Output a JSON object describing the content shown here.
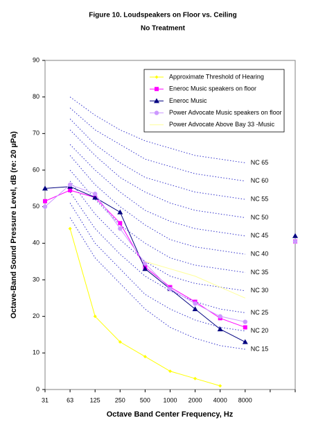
{
  "chart_data": {
    "type": "line",
    "title": "Figure 10. Loudspeakers on Floor vs. Ceiling",
    "subtitle": "No Treatment",
    "x_label": "Octave Band Center Frequency, Hz",
    "y_label": "Octave-Band Sound Pressure Level, dB (re: 20 µPa)",
    "categories": [
      "31",
      "63",
      "125",
      "250",
      "500",
      "1000",
      "2000",
      "4000",
      "8000",
      null,
      null
    ],
    "ylim": [
      0,
      90
    ],
    "yticks": [
      0,
      10,
      20,
      30,
      40,
      50,
      60,
      70,
      80,
      90
    ],
    "series": [
      {
        "name": "Approximate Threshold of Hearing",
        "color": "#ffff00",
        "marker": "diamond",
        "values": [
          null,
          44,
          20,
          13,
          9,
          5,
          3,
          1,
          null,
          null,
          null
        ]
      },
      {
        "name": "Eneroc Music speakers on floor",
        "color": "#ff00ff",
        "marker": "square",
        "values": [
          51.5,
          54.5,
          52.5,
          45.5,
          33.5,
          28,
          24,
          19.5,
          17,
          null,
          40.5
        ]
      },
      {
        "name": "Eneroc Music",
        "color": "#000080",
        "marker": "triangle",
        "values": [
          55,
          55.5,
          52.5,
          48.5,
          33,
          27.5,
          22,
          16.5,
          13,
          null,
          42
        ]
      },
      {
        "name": "Power Advocate Music speakers on floor",
        "color": "#cc99ff",
        "marker": "circle",
        "values": [
          50,
          56,
          53.5,
          44,
          34.5,
          27.5,
          23.5,
          20,
          18.5,
          null,
          40.5
        ]
      },
      {
        "name": "Power Advocate Above Bay 33 -Music",
        "color": "#ffff99",
        "marker": "none",
        "values": [
          null,
          null,
          null,
          null,
          35,
          33,
          31,
          28,
          25,
          null,
          null
        ]
      }
    ],
    "curves": [
      {
        "name": "NC 65",
        "values": [
          null,
          80,
          75,
          71,
          68,
          66,
          64,
          63,
          62,
          null,
          null
        ]
      },
      {
        "name": "NC 60",
        "values": [
          null,
          77,
          71,
          67,
          63,
          61,
          59,
          58,
          57,
          null,
          null
        ]
      },
      {
        "name": "NC 55",
        "values": [
          null,
          74,
          67,
          62,
          58,
          56,
          54,
          53,
          52,
          null,
          null
        ]
      },
      {
        "name": "NC 50",
        "values": [
          null,
          71,
          64,
          58,
          54,
          51,
          49,
          48,
          47,
          null,
          null
        ]
      },
      {
        "name": "NC 45",
        "values": [
          null,
          67,
          60,
          54,
          49,
          46,
          44,
          43,
          42,
          null,
          null
        ]
      },
      {
        "name": "NC 40",
        "values": [
          null,
          64,
          56,
          50,
          45,
          41,
          39,
          38,
          37,
          null,
          null
        ]
      },
      {
        "name": "NC 35",
        "values": [
          null,
          60,
          52,
          45,
          40,
          36,
          34,
          33,
          32,
          null,
          null
        ]
      },
      {
        "name": "NC 30",
        "values": [
          null,
          57,
          48,
          41,
          35,
          31,
          29,
          28,
          27,
          null,
          null
        ]
      },
      {
        "name": "NC 25",
        "values": [
          null,
          54,
          44,
          37,
          31,
          27,
          24,
          22,
          21,
          null,
          null
        ]
      },
      {
        "name": "NC 20",
        "values": [
          null,
          51,
          40,
          33,
          26,
          22,
          19,
          17,
          16,
          null,
          null
        ]
      },
      {
        "name": "NC 15",
        "values": [
          null,
          47,
          36,
          29,
          22,
          17,
          14,
          12,
          11,
          null,
          null
        ]
      }
    ],
    "curve_color": "#3333cc"
  }
}
